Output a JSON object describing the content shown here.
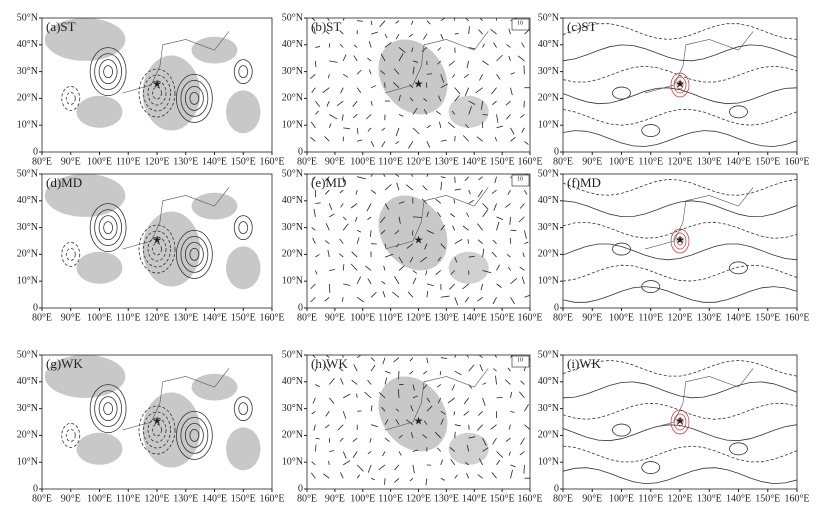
{
  "panels": [
    {
      "label": "(a)ST"
    },
    {
      "label": "(b)ST",
      "vector_scale": "10"
    },
    {
      "label": "(c)ST"
    },
    {
      "label": "(d)MD"
    },
    {
      "label": "(e)MD",
      "vector_scale": "10"
    },
    {
      "label": "(f)MD"
    },
    {
      "label": "(g)WK"
    },
    {
      "label": "(h)WK",
      "vector_scale": "10"
    },
    {
      "label": "(i)WK"
    }
  ],
  "lat_ticks": [
    "0",
    "10°N",
    "20°N",
    "30°N",
    "40°N",
    "50°N"
  ],
  "lon_ticks": [
    "80°E",
    "90°E",
    "100°E",
    "110°E",
    "120°E",
    "130°E",
    "140°E",
    "150°E",
    "160°E"
  ]
}
